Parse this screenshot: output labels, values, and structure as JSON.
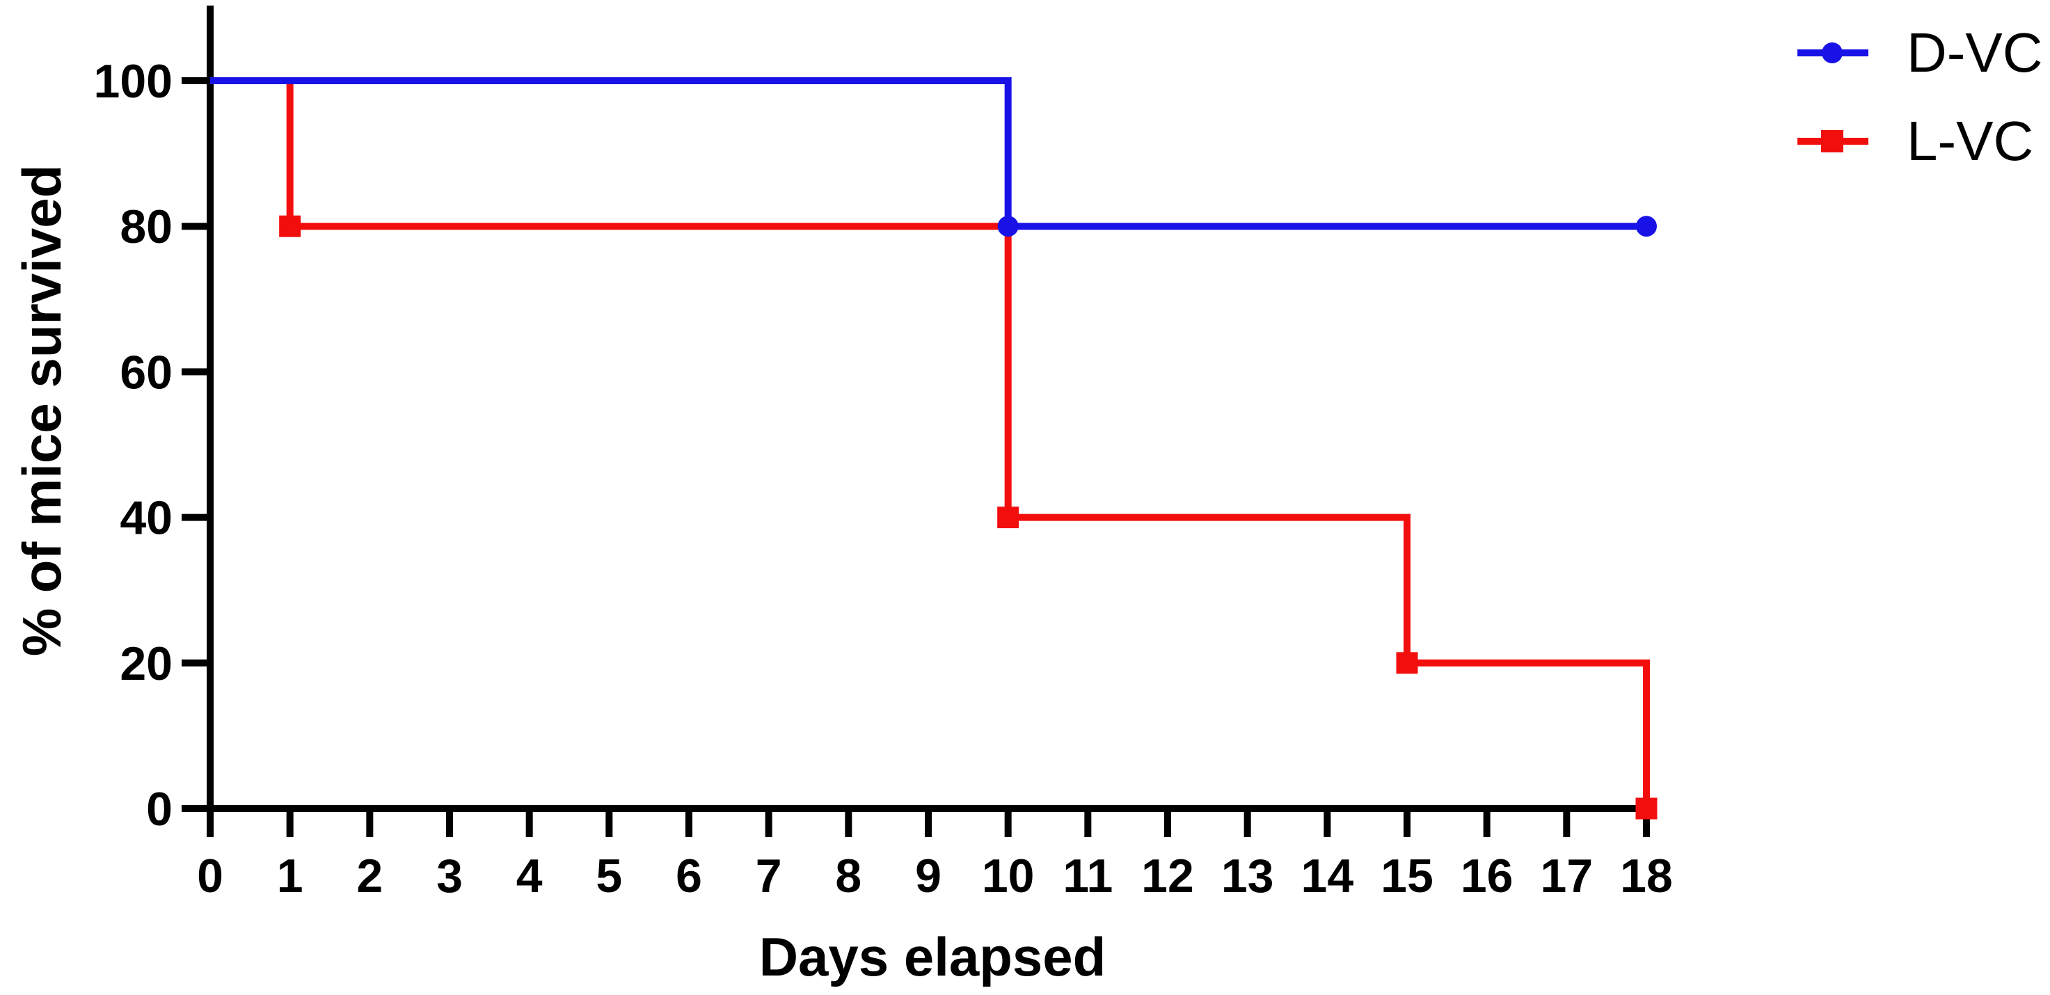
{
  "chart_data": {
    "type": "line",
    "variant": "kaplan-meier-survival-step",
    "title": "",
    "xlabel": "Days elapsed",
    "ylabel": "% of mice survived",
    "xlim": [
      0,
      18
    ],
    "ylim": [
      0,
      100
    ],
    "x_ticks": [
      0,
      1,
      2,
      3,
      4,
      5,
      6,
      7,
      8,
      9,
      10,
      11,
      12,
      13,
      14,
      15,
      16,
      17,
      18
    ],
    "y_ticks": [
      0,
      20,
      40,
      60,
      80,
      100
    ],
    "grid": false,
    "legend_position": "top-right",
    "axis_color": "#000000",
    "background_color": "#ffffff",
    "series": [
      {
        "name": "D-VC",
        "color": "#1812e6",
        "marker": "circle",
        "points": [
          [
            0,
            100
          ],
          [
            10,
            100
          ],
          [
            10,
            80
          ],
          [
            18,
            80
          ]
        ],
        "marker_points": [
          [
            10,
            80
          ],
          [
            18,
            80
          ]
        ]
      },
      {
        "name": "L-VC",
        "color": "#f30e0e",
        "marker": "square",
        "points": [
          [
            0,
            100
          ],
          [
            1,
            100
          ],
          [
            1,
            80
          ],
          [
            10,
            80
          ],
          [
            10,
            40
          ],
          [
            15,
            40
          ],
          [
            15,
            20
          ],
          [
            18,
            20
          ],
          [
            18,
            0
          ]
        ],
        "marker_points": [
          [
            1,
            80
          ],
          [
            10,
            40
          ],
          [
            15,
            20
          ],
          [
            18,
            0
          ]
        ]
      }
    ]
  }
}
